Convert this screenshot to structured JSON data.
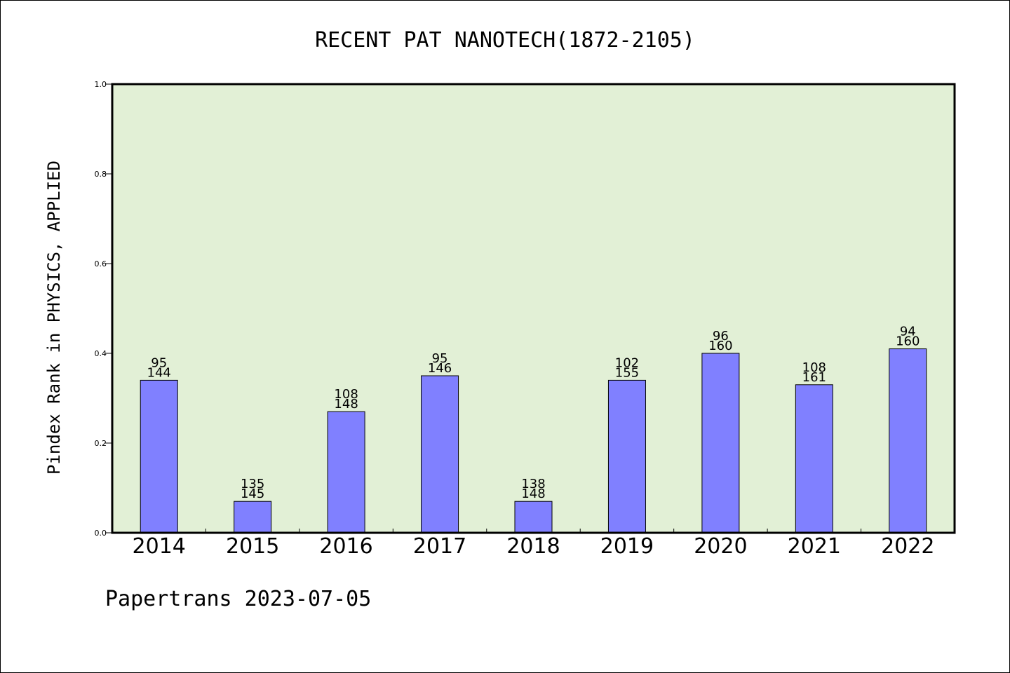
{
  "chart_data": {
    "type": "bar",
    "title": "RECENT PAT NANOTECH(1872-2105)",
    "ylabel": "Pindex Rank in PHYSICS, APPLIED",
    "xlabel": "",
    "ylim": [
      0,
      1.0
    ],
    "yticks": [
      "0.0",
      "0.2",
      "0.4",
      "0.6",
      "0.8",
      "1.0"
    ],
    "grid": false,
    "colors": {
      "bar": "#8080ff",
      "plot_bg": "#e2f0d6"
    },
    "categories": [
      "2014",
      "2015",
      "2016",
      "2017",
      "2018",
      "2019",
      "2020",
      "2021",
      "2022"
    ],
    "values": [
      0.34,
      0.07,
      0.27,
      0.35,
      0.07,
      0.34,
      0.4,
      0.33,
      0.41
    ],
    "labels": [
      {
        "top": "95",
        "bottom": "144"
      },
      {
        "top": "135",
        "bottom": "145"
      },
      {
        "top": "108",
        "bottom": "148"
      },
      {
        "top": "95",
        "bottom": "146"
      },
      {
        "top": "138",
        "bottom": "148"
      },
      {
        "top": "102",
        "bottom": "155"
      },
      {
        "top": "96",
        "bottom": "160"
      },
      {
        "top": "108",
        "bottom": "161"
      },
      {
        "top": "94",
        "bottom": "160"
      }
    ]
  },
  "footer": "Papertrans 2023-07-05"
}
